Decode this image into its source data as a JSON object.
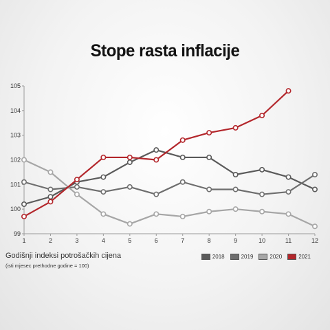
{
  "chart_data": {
    "type": "line",
    "title": "Stope rasta inflacije",
    "xlabel": "Godišnji indeksi potrošačkih cijena",
    "xlabel_note": "(isti mjesec prethodne godine = 100)",
    "x": [
      1,
      2,
      3,
      4,
      5,
      6,
      7,
      8,
      9,
      10,
      11,
      12
    ],
    "ylim": [
      99,
      105
    ],
    "yticks": [
      99,
      100,
      101,
      102,
      103,
      104,
      105
    ],
    "grid": false,
    "legend_position": "bottom-right",
    "series": [
      {
        "name": "2018",
        "color": "#5a5a5a",
        "values": [
          100.2,
          100.5,
          101.1,
          101.3,
          101.9,
          102.4,
          102.1,
          102.1,
          101.4,
          101.6,
          101.3,
          100.8
        ]
      },
      {
        "name": "2019",
        "color": "#6e6e6e",
        "values": [
          101.1,
          100.8,
          100.9,
          100.7,
          100.9,
          100.6,
          101.1,
          100.8,
          100.8,
          100.6,
          100.7,
          101.4
        ]
      },
      {
        "name": "2020",
        "color": "#a6a6a6",
        "values": [
          102.0,
          101.5,
          100.6,
          99.8,
          99.4,
          99.8,
          99.7,
          99.9,
          100.0,
          99.9,
          99.8,
          99.3
        ]
      },
      {
        "name": "2021",
        "color": "#b3262b",
        "values": [
          99.7,
          100.3,
          101.2,
          102.1,
          102.1,
          102.0,
          102.8,
          103.1,
          103.3,
          103.8,
          104.8,
          null
        ]
      }
    ]
  }
}
